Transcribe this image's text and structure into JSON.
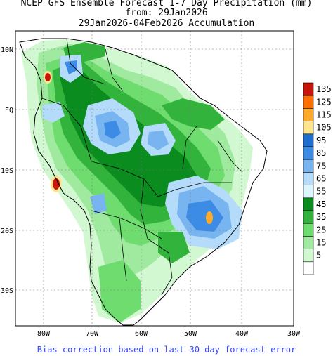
{
  "title": {
    "line1": "NCEP GFS Ensemble Forecast 1-7 Day Precipitation (mm)",
    "line2": "from: 29Jan2026",
    "line3": "29Jan2026-04Feb2026 Accumulation"
  },
  "axes": {
    "lat_ticks": [
      "10N",
      "EQ",
      "10S",
      "20S",
      "30S"
    ],
    "lon_ticks": [
      "80W",
      "70W",
      "60W",
      "50W",
      "40W",
      "30W"
    ]
  },
  "legend": {
    "levels": [
      {
        "label": "135",
        "color": "#c8140a"
      },
      {
        "label": "125",
        "color": "#ff6e00"
      },
      {
        "label": "115",
        "color": "#ffaa28"
      },
      {
        "label": "105",
        "color": "#ffe68c"
      },
      {
        "label": "95",
        "color": "#1e6ed2"
      },
      {
        "label": "85",
        "color": "#3c8ce6"
      },
      {
        "label": "75",
        "color": "#78b4f0"
      },
      {
        "label": "65",
        "color": "#b4dcfa"
      },
      {
        "label": "55",
        "color": "#dcf5ff"
      },
      {
        "label": "45",
        "color": "#0a8c1e"
      },
      {
        "label": "35",
        "color": "#32b43c"
      },
      {
        "label": "25",
        "color": "#6edc6e"
      },
      {
        "label": "15",
        "color": "#a0eaa0"
      },
      {
        "label": "5",
        "color": "#d2f8d2"
      },
      {
        "label": "",
        "color": "#ffffff"
      }
    ]
  },
  "footer": "Bias correction based on last 30-day forecast error"
}
